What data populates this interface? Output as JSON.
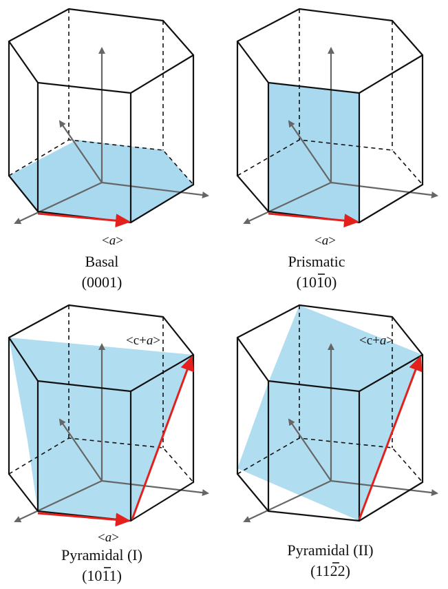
{
  "colors": {
    "plane_fill": "#a9d9ee",
    "slip_arrow": "#e3201b",
    "axis_arrow": "#666666",
    "edge": "#111111"
  },
  "panels": [
    {
      "plane_name": "Basal",
      "miller_index": "(0001)",
      "direction_label": "<a>",
      "italic_a": true
    },
    {
      "plane_name": "Prismatic",
      "miller_index": "(1010)",
      "bar_over_digit": 3,
      "direction_label": "<a>"
    },
    {
      "plane_name": "Pyramidal (I)",
      "miller_index": "(1011)",
      "bar_over_digit": 3,
      "direction_labels": [
        "<c+a>",
        "<a>"
      ]
    },
    {
      "plane_name": "Pyramidal (II)",
      "miller_index": "(1122)",
      "bar_over_digit": 3,
      "direction_label": "<c+a>"
    }
  ]
}
